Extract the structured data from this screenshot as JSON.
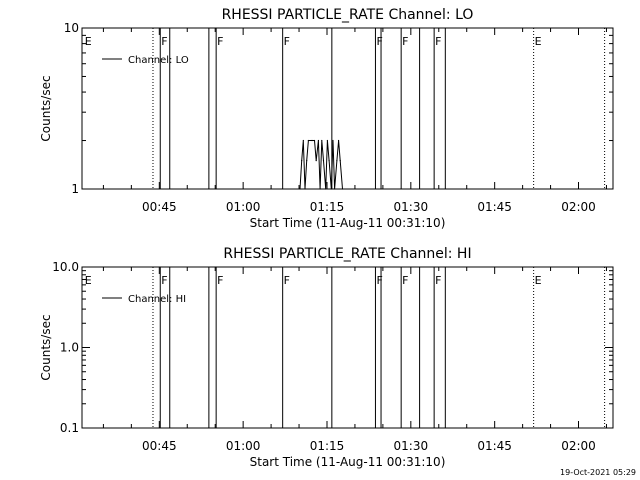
{
  "colors": {
    "background": "#ffffff",
    "foreground": "#000000"
  },
  "footer": {
    "timestamp": "19-Oct-2021 05:29"
  },
  "chart_data": [
    {
      "type": "line",
      "title": "RHESSI PARTICLE_RATE Channel: LO",
      "xlabel": "Start Time (11-Aug-11 00:31:10)",
      "ylabel": "Counts/sec",
      "yscale": "log",
      "ylim": [
        1,
        10
      ],
      "yticks": [
        {
          "value": 1,
          "label": "1"
        },
        {
          "value": 10,
          "label": "10"
        }
      ],
      "xlim_minutes": [
        0,
        95
      ],
      "xticks": [
        {
          "minutes": 13.83,
          "label": "00:45"
        },
        {
          "minutes": 28.83,
          "label": "01:00"
        },
        {
          "minutes": 43.83,
          "label": "01:15"
        },
        {
          "minutes": 58.83,
          "label": "01:30"
        },
        {
          "minutes": 73.83,
          "label": "01:45"
        },
        {
          "minutes": 88.83,
          "label": "02:00"
        }
      ],
      "legend": {
        "label": "Channel: LO",
        "position": "top-left"
      },
      "flags": [
        {
          "minutes": 0.5,
          "label": "E",
          "style": "none"
        },
        {
          "minutes": 12.7,
          "label": "",
          "style": "dotted"
        },
        {
          "minutes": 14.0,
          "label": "F",
          "style": "solid"
        },
        {
          "minutes": 15.7,
          "label": "",
          "style": "solid"
        },
        {
          "minutes": 22.7,
          "label": "",
          "style": "solid"
        },
        {
          "minutes": 24.0,
          "label": "F",
          "style": "solid"
        },
        {
          "minutes": 35.9,
          "label": "F",
          "style": "solid"
        },
        {
          "minutes": 44.7,
          "label": "",
          "style": "solid"
        },
        {
          "minutes": 52.5,
          "label": "F",
          "style": "solid"
        },
        {
          "minutes": 53.5,
          "label": "",
          "style": "solid"
        },
        {
          "minutes": 57.1,
          "label": "F",
          "style": "solid"
        },
        {
          "minutes": 60.4,
          "label": "",
          "style": "solid"
        },
        {
          "minutes": 63.0,
          "label": "F",
          "style": "solid"
        },
        {
          "minutes": 65.0,
          "label": "",
          "style": "solid"
        },
        {
          "minutes": 80.8,
          "label": "E",
          "style": "dotted"
        },
        {
          "minutes": 93.5,
          "label": "",
          "style": "dotted"
        }
      ],
      "series": [
        {
          "x_minutes": [
            39.0,
            39.3,
            39.6,
            39.9,
            40.2,
            40.5,
            41.0,
            41.3,
            41.6,
            41.9,
            42.3,
            42.6,
            42.9,
            43.2,
            43.6,
            43.9,
            44.2,
            44.6,
            44.9,
            45.2,
            45.6,
            45.9,
            46.2,
            46.6
          ],
          "values": [
            1,
            1.5,
            2,
            1,
            1.5,
            2,
            2,
            2,
            2,
            1.5,
            2,
            1,
            2,
            1.5,
            1,
            2,
            1.5,
            1,
            2,
            1,
            1.5,
            2,
            1.5,
            1
          ]
        }
      ]
    },
    {
      "type": "line",
      "title": "RHESSI PARTICLE_RATE Channel: HI",
      "xlabel": "Start Time (11-Aug-11 00:31:10)",
      "ylabel": "Counts/sec",
      "yscale": "log",
      "ylim": [
        0.1,
        10
      ],
      "yticks": [
        {
          "value": 0.1,
          "label": "0.1"
        },
        {
          "value": 1,
          "label": "1.0"
        },
        {
          "value": 10,
          "label": "10.0"
        }
      ],
      "xlim_minutes": [
        0,
        95
      ],
      "xticks": [
        {
          "minutes": 13.83,
          "label": "00:45"
        },
        {
          "minutes": 28.83,
          "label": "01:00"
        },
        {
          "minutes": 43.83,
          "label": "01:15"
        },
        {
          "minutes": 58.83,
          "label": "01:30"
        },
        {
          "minutes": 73.83,
          "label": "01:45"
        },
        {
          "minutes": 88.83,
          "label": "02:00"
        }
      ],
      "legend": {
        "label": "Channel: HI",
        "position": "top-left"
      },
      "flags": [
        {
          "minutes": 0.5,
          "label": "E",
          "style": "none"
        },
        {
          "minutes": 12.7,
          "label": "",
          "style": "dotted"
        },
        {
          "minutes": 14.0,
          "label": "F",
          "style": "solid"
        },
        {
          "minutes": 15.7,
          "label": "",
          "style": "solid"
        },
        {
          "minutes": 22.7,
          "label": "",
          "style": "solid"
        },
        {
          "minutes": 24.0,
          "label": "F",
          "style": "solid"
        },
        {
          "minutes": 35.9,
          "label": "F",
          "style": "solid"
        },
        {
          "minutes": 44.7,
          "label": "",
          "style": "solid"
        },
        {
          "minutes": 52.5,
          "label": "F",
          "style": "solid"
        },
        {
          "minutes": 53.5,
          "label": "",
          "style": "solid"
        },
        {
          "minutes": 57.1,
          "label": "F",
          "style": "solid"
        },
        {
          "minutes": 60.4,
          "label": "",
          "style": "solid"
        },
        {
          "minutes": 63.0,
          "label": "F",
          "style": "solid"
        },
        {
          "minutes": 65.0,
          "label": "",
          "style": "solid"
        },
        {
          "minutes": 80.8,
          "label": "E",
          "style": "dotted"
        },
        {
          "minutes": 93.5,
          "label": "",
          "style": "dotted"
        }
      ],
      "series": [
        {
          "x_minutes": [],
          "values": []
        }
      ]
    }
  ]
}
